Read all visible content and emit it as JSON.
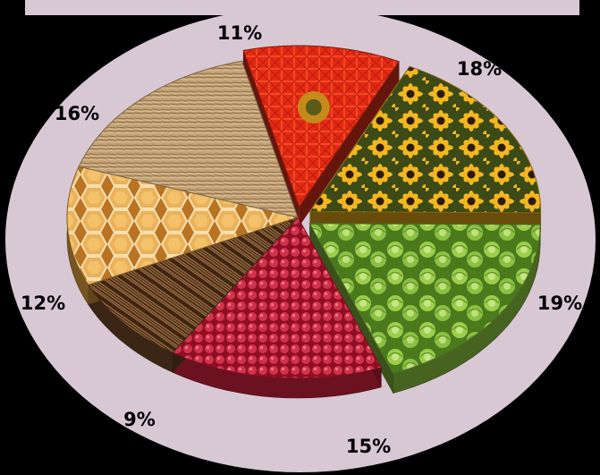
{
  "chart_data": {
    "type": "pie",
    "title": "",
    "categories": [
      "",
      "",
      "",
      "",
      "",
      "",
      ""
    ],
    "values": [
      11,
      18,
      19,
      15,
      9,
      12,
      16
    ],
    "labels": [
      "11%",
      "18%",
      "19%",
      "15%",
      "9%",
      "12%",
      "16%"
    ],
    "slice_textures": [
      "red-gerbera-flower",
      "yellow-black-eyed-susans",
      "green-lettuce",
      "raspberries",
      "brown-wood-fibers",
      "honeycomb",
      "dry-wheat-field"
    ],
    "colors": [
      "#e0301a",
      "#e8a81a",
      "#7fb43a",
      "#c41e3a",
      "#6b4426",
      "#d99a3a",
      "#c9a878"
    ],
    "exploded": [
      true,
      true,
      true,
      false,
      false,
      false,
      false
    ],
    "start_angle_deg": -104,
    "direction": "clockwise",
    "style": "3d-tilted",
    "legend": "none",
    "background_ellipse_color": "#d8c8d4",
    "title_bar_color": "#d8c8d4"
  }
}
